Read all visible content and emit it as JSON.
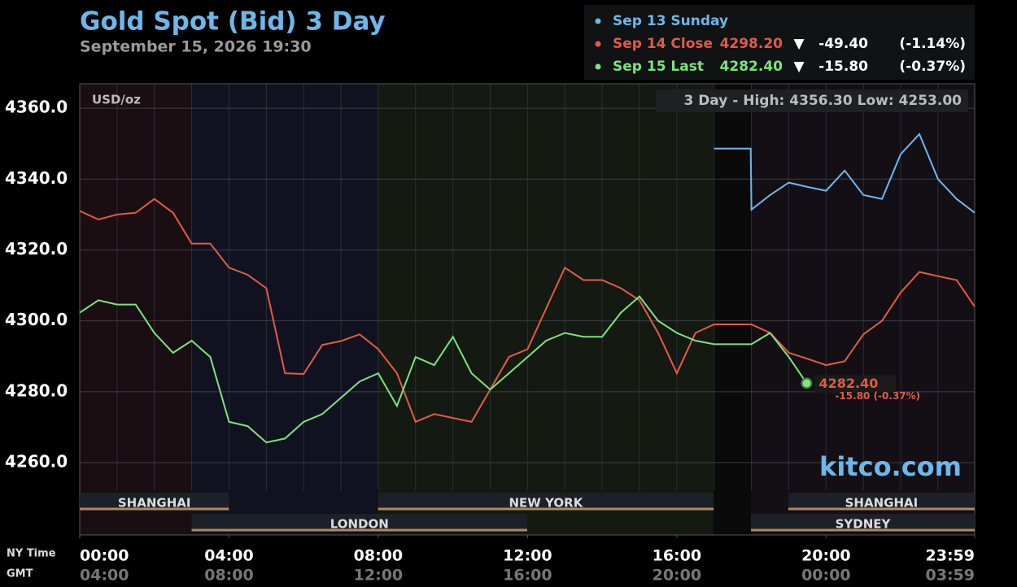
{
  "chart_data": {
    "type": "line",
    "title": "Gold Spot (Bid) 3 Day",
    "subtitle": "September 15, 2026 19:30",
    "unit_label": "USD/oz",
    "range_note": "3 Day - High: 4356.30  Low: 4253.00",
    "brand": "kitco.com",
    "x_axis_labels": [
      "NY Time",
      "GMT"
    ],
    "xlim": [
      0,
      23.983
    ],
    "ylim": [
      4252.2,
      4366.9
    ],
    "yticks": [
      {
        "value": 4260,
        "label": "4260.0"
      },
      {
        "value": 4280,
        "label": "4280.0"
      },
      {
        "value": 4300,
        "label": "4300.0"
      },
      {
        "value": 4320,
        "label": "4320.0"
      },
      {
        "value": 4340,
        "label": "4340.0"
      },
      {
        "value": 4360,
        "label": "4360.0"
      }
    ],
    "xticks": [
      {
        "value": 0,
        "label": "00:00"
      },
      {
        "value": 4,
        "label": "04:00"
      },
      {
        "value": 8,
        "label": "08:00"
      },
      {
        "value": 12,
        "label": "12:00"
      },
      {
        "value": 16,
        "label": "16:00"
      },
      {
        "value": 20,
        "label": "20:00"
      },
      {
        "value": 23.983,
        "label": "23:59"
      }
    ],
    "gmt_labels": [
      "04:00",
      "08:00",
      "12:00",
      "16:00",
      "20:00",
      "00:00",
      "03:59"
    ],
    "x_gridlines": [
      1,
      2,
      3,
      4,
      5,
      6,
      7,
      8,
      9,
      10,
      11,
      12,
      13,
      14,
      15,
      16,
      17,
      18,
      19,
      20,
      21,
      22,
      23
    ],
    "grid": true,
    "sessions": [
      "SHANGHAI",
      "NEW YORK",
      "SHANGHAI",
      "LONDON",
      "SYDNEY"
    ],
    "series": [
      {
        "name": "Sep 13 Sunday",
        "color": "#6cb8ea",
        "stats": [],
        "x": [
          17,
          17.98,
          18,
          18.5,
          19,
          19.5,
          20,
          20.5,
          21,
          21.5,
          22,
          22.5,
          23,
          23.5,
          23.983
        ],
        "values": [
          4348.6,
          4348.6,
          4331.4,
          4335.5,
          4339,
          4337.8,
          4336.7,
          4342.4,
          4335.5,
          4334.4,
          4347,
          4352.7,
          4340,
          4334.4,
          4330.5
        ]
      },
      {
        "name": "Sep 14 Close",
        "color": "#e25a47",
        "stats": [
          "4298.20",
          "▼",
          "-49.40",
          "(-1.14%)"
        ],
        "x": [
          0,
          0.5,
          1,
          1.5,
          2,
          2.5,
          3,
          3.5,
          4,
          4.5,
          5,
          5.5,
          6,
          6.5,
          7,
          7.5,
          8,
          8.5,
          9,
          9.5,
          10,
          10.5,
          11,
          11.5,
          12,
          12.5,
          13,
          13.5,
          14,
          14.5,
          15,
          15.5,
          16,
          16.5,
          17,
          17.5,
          18,
          18.5,
          19,
          19.5,
          20,
          20.5,
          21,
          21.5,
          22,
          22.5,
          23,
          23.5,
          23.983
        ],
        "values": [
          4331,
          4328.6,
          4330,
          4330.5,
          4334.4,
          4330.5,
          4321.8,
          4321.8,
          4315,
          4313,
          4309.2,
          4285.2,
          4285,
          4293.2,
          4294.3,
          4296.2,
          4292,
          4285.2,
          4271.5,
          4273.7,
          4272.6,
          4271.5,
          4280.6,
          4289.8,
          4292,
          4303.5,
          4315,
          4311.5,
          4311.5,
          4309.2,
          4305.8,
          4296.6,
          4285.2,
          4296.6,
          4299,
          4299,
          4299,
          4296.6,
          4291,
          4289.3,
          4287.5,
          4288.6,
          4296.2,
          4300,
          4308,
          4313.8,
          4312.6,
          4311.5,
          4304
        ]
      },
      {
        "name": "Sep 15 Last",
        "color": "#7ee27e",
        "stats": [
          "4282.40",
          "▼",
          "-15.80",
          "(-0.37%)"
        ],
        "x": [
          0,
          0.5,
          1,
          1.5,
          2,
          2.5,
          3,
          3.5,
          4,
          4.5,
          5,
          5.5,
          6,
          6.5,
          7,
          7.5,
          8,
          8.5,
          9,
          9.5,
          10,
          10.5,
          11,
          11.5,
          12,
          12.5,
          13,
          13.5,
          14,
          14.5,
          15,
          15.5,
          16,
          16.5,
          17,
          17.5,
          18,
          18.5,
          19,
          19.48
        ],
        "values": [
          4302.3,
          4305.8,
          4304.6,
          4304.6,
          4296.6,
          4291,
          4294.4,
          4289.8,
          4271.5,
          4270.3,
          4265.7,
          4266.8,
          4271.5,
          4273.7,
          4278.3,
          4282.9,
          4285.2,
          4276,
          4289.8,
          4287.5,
          4295.5,
          4285.2,
          4280.6,
          4285.2,
          4289.8,
          4294.4,
          4296.6,
          4295.5,
          4295.5,
          4302.3,
          4306.9,
          4300,
          4296.6,
          4294.4,
          4293.4,
          4293.4,
          4293.4,
          4296.6,
          4289.8,
          4282.4
        ]
      }
    ],
    "end_label": "4282.40",
    "end_change": "-15.80 (-0.37%)"
  }
}
